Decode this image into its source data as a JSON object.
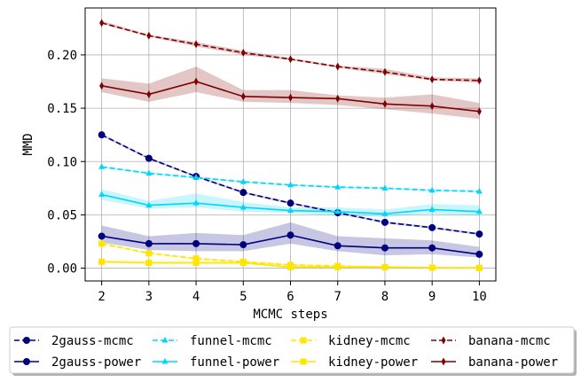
{
  "chart_data": {
    "type": "line",
    "title": "",
    "xlabel": "MCMC steps",
    "ylabel": "MMD",
    "x": [
      2,
      3,
      4,
      5,
      6,
      7,
      8,
      9,
      10
    ],
    "xlim": [
      1.65,
      10.35
    ],
    "ylim": [
      -0.012,
      0.244
    ],
    "yticks": [
      0.0,
      0.05,
      0.1,
      0.15,
      0.2
    ],
    "ytick_labels": [
      "0.00",
      "0.05",
      "0.10",
      "0.15",
      "0.20"
    ],
    "xtick_labels": [
      "2",
      "3",
      "4",
      "5",
      "6",
      "7",
      "8",
      "9",
      "10"
    ],
    "grid": true,
    "legend_position": "below",
    "series": [
      {
        "name": "2gauss-mcmc",
        "color": "#00007f",
        "style": "dashed",
        "marker": "circle",
        "values": [
          0.125,
          0.103,
          0.086,
          0.071,
          0.061,
          0.052,
          0.043,
          0.038,
          0.032
        ],
        "lower": [
          0.124,
          0.102,
          0.085,
          0.07,
          0.06,
          0.051,
          0.042,
          0.037,
          0.031
        ],
        "upper": [
          0.126,
          0.104,
          0.087,
          0.072,
          0.062,
          0.053,
          0.044,
          0.039,
          0.033
        ]
      },
      {
        "name": "2gauss-power",
        "color": "#00007f",
        "style": "solid",
        "marker": "circle",
        "values": [
          0.03,
          0.023,
          0.023,
          0.022,
          0.031,
          0.021,
          0.019,
          0.019,
          0.013
        ],
        "lower": [
          0.024,
          0.017,
          0.016,
          0.016,
          0.023,
          0.016,
          0.012,
          0.013,
          0.01
        ],
        "upper": [
          0.04,
          0.03,
          0.033,
          0.031,
          0.043,
          0.03,
          0.028,
          0.026,
          0.02
        ]
      },
      {
        "name": "funnel-mcmc",
        "color": "#00d4ff",
        "style": "dashed",
        "marker": "triangle",
        "values": [
          0.095,
          0.089,
          0.085,
          0.081,
          0.078,
          0.076,
          0.075,
          0.073,
          0.072
        ],
        "lower": [
          0.094,
          0.088,
          0.084,
          0.08,
          0.077,
          0.075,
          0.074,
          0.072,
          0.071
        ],
        "upper": [
          0.096,
          0.09,
          0.086,
          0.082,
          0.079,
          0.077,
          0.076,
          0.074,
          0.073
        ]
      },
      {
        "name": "funnel-power",
        "color": "#00d4ff",
        "style": "solid",
        "marker": "triangle",
        "values": [
          0.069,
          0.059,
          0.061,
          0.057,
          0.054,
          0.053,
          0.051,
          0.055,
          0.053
        ],
        "lower": [
          0.064,
          0.056,
          0.057,
          0.053,
          0.052,
          0.049,
          0.048,
          0.051,
          0.049
        ],
        "upper": [
          0.074,
          0.063,
          0.07,
          0.062,
          0.057,
          0.057,
          0.055,
          0.06,
          0.059
        ]
      },
      {
        "name": "kidney-mcmc",
        "color": "#ffe500",
        "style": "dashed",
        "marker": "square",
        "values": [
          0.023,
          0.014,
          0.009,
          0.006,
          0.003,
          0.002,
          0.001,
          0.0005,
          0.0003
        ],
        "lower": [
          0.022,
          0.013,
          0.008,
          0.005,
          0.002,
          0.001,
          0.0005,
          0.0,
          0.0
        ],
        "upper": [
          0.024,
          0.015,
          0.01,
          0.007,
          0.004,
          0.003,
          0.002,
          0.001,
          0.001
        ]
      },
      {
        "name": "kidney-power",
        "color": "#ffe500",
        "style": "solid",
        "marker": "square",
        "values": [
          0.006,
          0.005,
          0.005,
          0.005,
          0.001,
          0.001,
          0.001,
          0.0005,
          0.0003
        ],
        "lower": [
          0.005,
          0.004,
          0.004,
          0.004,
          0.0,
          0.0,
          0.0,
          0.0,
          0.0
        ],
        "upper": [
          0.008,
          0.007,
          0.007,
          0.007,
          0.003,
          0.002,
          0.002,
          0.001,
          0.001
        ]
      },
      {
        "name": "banana-mcmc",
        "color": "#7f0000",
        "style": "dashed",
        "marker": "diamond",
        "values": [
          0.23,
          0.218,
          0.21,
          0.202,
          0.196,
          0.189,
          0.184,
          0.177,
          0.176
        ],
        "lower": [
          0.229,
          0.217,
          0.208,
          0.2,
          0.195,
          0.188,
          0.182,
          0.176,
          0.174
        ],
        "upper": [
          0.232,
          0.219,
          0.212,
          0.204,
          0.197,
          0.19,
          0.187,
          0.179,
          0.178
        ]
      },
      {
        "name": "banana-power",
        "color": "#7f0000",
        "style": "solid",
        "marker": "diamond",
        "values": [
          0.171,
          0.163,
          0.175,
          0.161,
          0.16,
          0.159,
          0.154,
          0.152,
          0.147
        ],
        "lower": [
          0.165,
          0.156,
          0.165,
          0.156,
          0.155,
          0.153,
          0.149,
          0.145,
          0.14
        ],
        "upper": [
          0.178,
          0.173,
          0.189,
          0.167,
          0.167,
          0.162,
          0.16,
          0.163,
          0.155
        ]
      }
    ]
  }
}
